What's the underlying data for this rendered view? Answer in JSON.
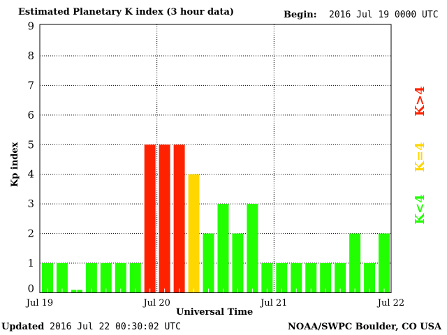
{
  "chart_data": {
    "type": "bar",
    "title": "Estimated Planetary K index (3 hour data)",
    "begin_label": "Begin:",
    "begin_value": "2016 Jul 19 0000 UTC",
    "xlabel": "Universal Time",
    "ylabel": "Kp index",
    "ylim": [
      0,
      9
    ],
    "yticks": [
      "0",
      "1",
      "2",
      "3",
      "4",
      "5",
      "6",
      "7",
      "8",
      "9"
    ],
    "xticks": [
      "Jul 19",
      "Jul 20",
      "Jul 21",
      "Jul 22"
    ],
    "grid": true,
    "values": [
      1,
      1,
      0.1,
      1,
      1,
      1,
      1,
      5,
      5,
      5,
      4,
      2,
      3,
      2,
      3,
      1,
      1,
      1,
      1,
      1,
      1,
      2,
      1,
      2
    ],
    "legend": [
      {
        "label": "K<4",
        "color": "#22ff00"
      },
      {
        "label": "K=4",
        "color": "#ffd700"
      },
      {
        "label": "K>4",
        "color": "#ff2200"
      }
    ]
  },
  "footer": {
    "updated_label": "Updated",
    "updated_value": "2016 Jul 22 00:30:02 UTC",
    "credit": "NOAA/SWPC Boulder, CO USA"
  }
}
